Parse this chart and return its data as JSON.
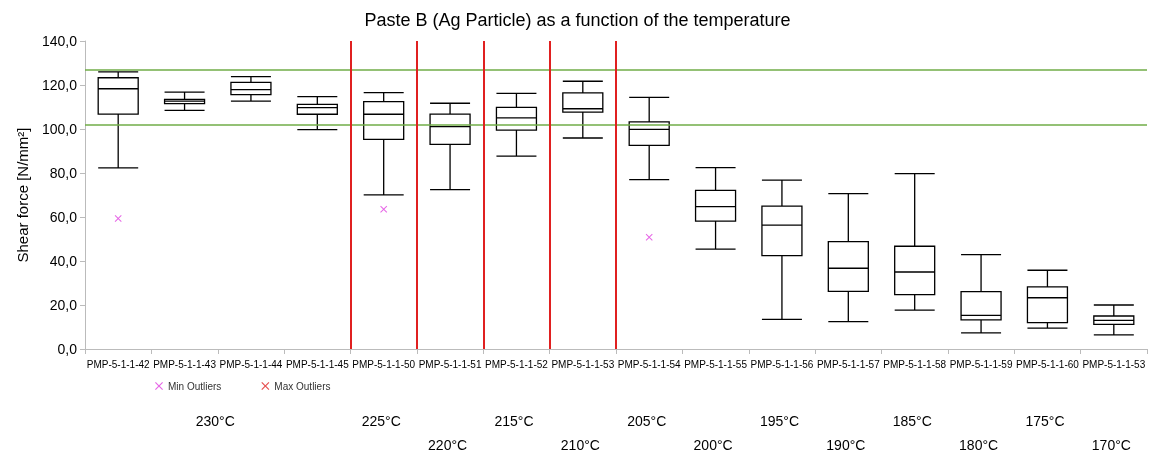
{
  "chart_data": {
    "type": "box",
    "title": "Paste B (Ag Particle) as a function of the temperature",
    "ylabel": "Shear force [N/mm²]",
    "categories": [
      "PMP-5-1-1-42",
      "PMP-5-1-1-43",
      "PMP-5-1-1-44",
      "PMP-5-1-1-45",
      "PMP-5-1-1-50",
      "PMP-5-1-1-51",
      "PMP-5-1-1-52",
      "PMP-5-1-1-53",
      "PMP-5-1-1-54",
      "PMP-5-1-1-55",
      "PMP-5-1-1-56",
      "PMP-5-1-1-57",
      "PMP-5-1-1-58",
      "PMP-5-1-1-59",
      "PMP-5-1-1-60",
      "PMP-5-1-1-53"
    ],
    "ylim": [
      0,
      140
    ],
    "yticks": [
      {
        "value": 0,
        "label": "0,0"
      },
      {
        "value": 20,
        "label": "20,0"
      },
      {
        "value": 40,
        "label": "40,0"
      },
      {
        "value": 60,
        "label": "60,0"
      },
      {
        "value": 80,
        "label": "80,0"
      },
      {
        "value": 100,
        "label": "100,0"
      },
      {
        "value": 120,
        "label": "120,0"
      },
      {
        "value": 140,
        "label": "140,0"
      }
    ],
    "series": [
      {
        "color": "#000000",
        "boxes": [
          {
            "low": 82.3,
            "q1": 106.8,
            "median": 118.3,
            "q3": 123.3,
            "high": 126
          },
          {
            "low": 108.5,
            "q1": 111.5,
            "median": 112.7,
            "q3": 113.5,
            "high": 116.8
          },
          {
            "low": 112.7,
            "q1": 115.6,
            "median": 117.9,
            "q3": 121.2,
            "high": 123.8
          },
          {
            "low": 99.7,
            "q1": 106.7,
            "median": 109.7,
            "q3": 111.2,
            "high": 114.7
          },
          {
            "low": 70.1,
            "q1": 95.3,
            "median": 106.7,
            "q3": 112.4,
            "high": 116.5
          },
          {
            "low": 72.4,
            "q1": 93,
            "median": 101.1,
            "q3": 106.8,
            "high": 111.7
          },
          {
            "low": 87.7,
            "q1": 99.5,
            "median": 105.1,
            "q3": 109.8,
            "high": 116.2
          },
          {
            "low": 95.9,
            "q1": 107.7,
            "median": 109.2,
            "q3": 116.4,
            "high": 121.7
          },
          {
            "low": 77,
            "q1": 92.6,
            "median": 99.8,
            "q3": 103.2,
            "high": 114.4
          },
          {
            "low": 45.4,
            "q1": 58.1,
            "median": 64.7,
            "q3": 72.1,
            "high": 82.4
          },
          {
            "low": 13.5,
            "q1": 42.4,
            "median": 56.3,
            "q3": 64.9,
            "high": 76.8
          },
          {
            "low": 12.4,
            "q1": 26.2,
            "median": 36.7,
            "q3": 48.8,
            "high": 70.6
          },
          {
            "low": 17.7,
            "q1": 24.7,
            "median": 35,
            "q3": 46.7,
            "high": 79.7
          },
          {
            "low": 7.3,
            "q1": 13.2,
            "median": 15.3,
            "q3": 26.1,
            "high": 42.9
          },
          {
            "low": 9.5,
            "q1": 12,
            "median": 23.3,
            "q3": 28.2,
            "high": 35.8
          },
          {
            "low": 6.4,
            "q1": 11.2,
            "median": 13,
            "q3": 15,
            "high": 20
          }
        ]
      },
      {
        "type": "scatter",
        "name": "Min Outliers",
        "color": "#e040e0",
        "marker": "cross",
        "x": [
          "PMP-5-1-1-42",
          "PMP-5-1-1-50",
          "PMP-5-1-1-54"
        ],
        "values": [
          59.3,
          63.5,
          50.8
        ]
      },
      {
        "type": "scatter",
        "name": "Max Outliers",
        "color": "#e02020",
        "marker": "cross",
        "values": [
          null,
          null,
          null,
          null,
          null,
          null,
          null,
          null,
          null,
          null,
          null,
          null,
          null,
          null,
          null,
          null
        ]
      }
    ],
    "ref_lines": [
      {
        "axis": "y",
        "value": 127,
        "color": "#70ad47"
      },
      {
        "axis": "y",
        "value": 102,
        "color": "#70ad47"
      }
    ],
    "annotations": [
      "230°C",
      "225°C",
      "220°C",
      "215°C",
      "210°C",
      "205°C",
      "200°C",
      "195°C",
      "190°C",
      "185°C",
      "180°C",
      "175°C",
      "170°C"
    ],
    "legend": "bottom left",
    "grid": false
  }
}
